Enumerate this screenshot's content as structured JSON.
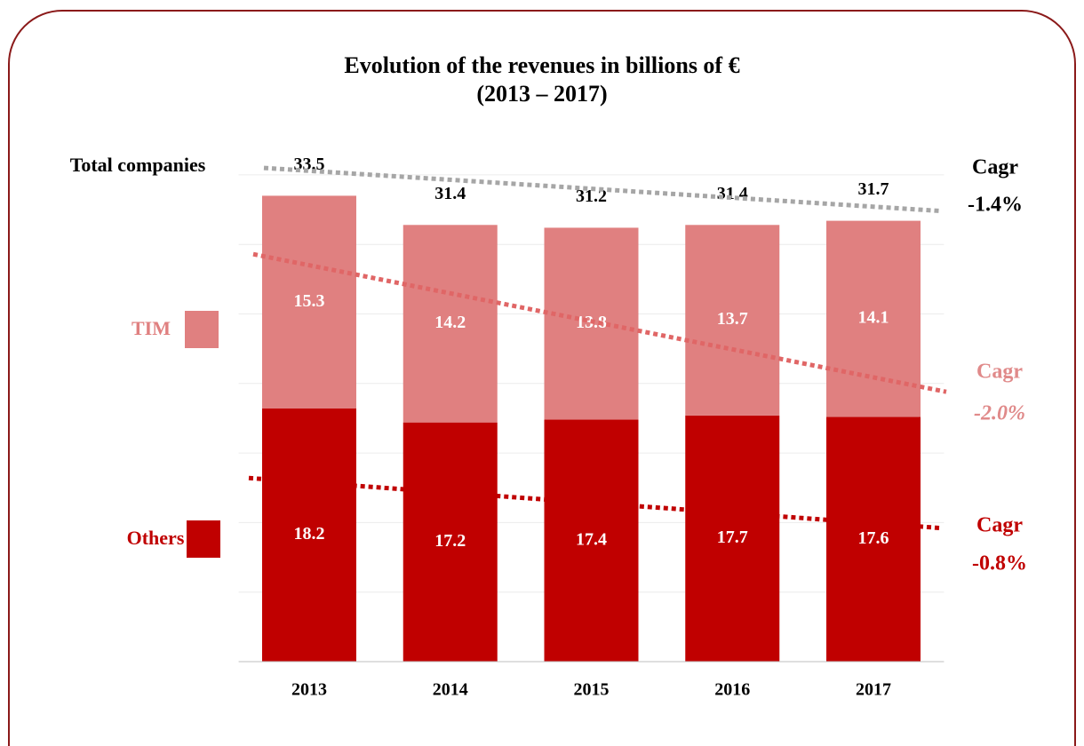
{
  "chart_data": {
    "type": "bar",
    "stacked": true,
    "title": "Evolution of the revenues in billions of €",
    "subtitle": "(2013 – 2017)",
    "categories": [
      "2013",
      "2014",
      "2015",
      "2016",
      "2017"
    ],
    "series": [
      {
        "name": "Others",
        "color": "#c00000",
        "values": [
          18.2,
          17.2,
          17.4,
          17.7,
          17.6
        ]
      },
      {
        "name": "TIM",
        "color": "#e08080",
        "values": [
          15.3,
          14.2,
          13.8,
          13.7,
          14.1
        ]
      }
    ],
    "totals": {
      "name": "Total companies",
      "values": [
        33.5,
        31.4,
        31.2,
        31.4,
        31.7
      ]
    },
    "ylim": [
      0,
      37
    ],
    "ygrid": [
      5,
      10,
      15,
      20,
      25,
      30,
      35
    ],
    "trendlines": [
      {
        "color": "#a6a6a6",
        "text_color": "#000000",
        "start": 35.5,
        "end": 32.4,
        "label": "Cagr",
        "cagr": "-1.4%"
      },
      {
        "color": "#e06666",
        "text_color": "#e08a8a",
        "start": 29.3,
        "end": 19.4,
        "label": "Cagr",
        "cagr": "-2.0%"
      },
      {
        "color": "#c00000",
        "text_color": "#c00000",
        "start": 13.2,
        "end": 9.6,
        "label": "Cagr",
        "cagr": "-0.8%"
      }
    ]
  }
}
